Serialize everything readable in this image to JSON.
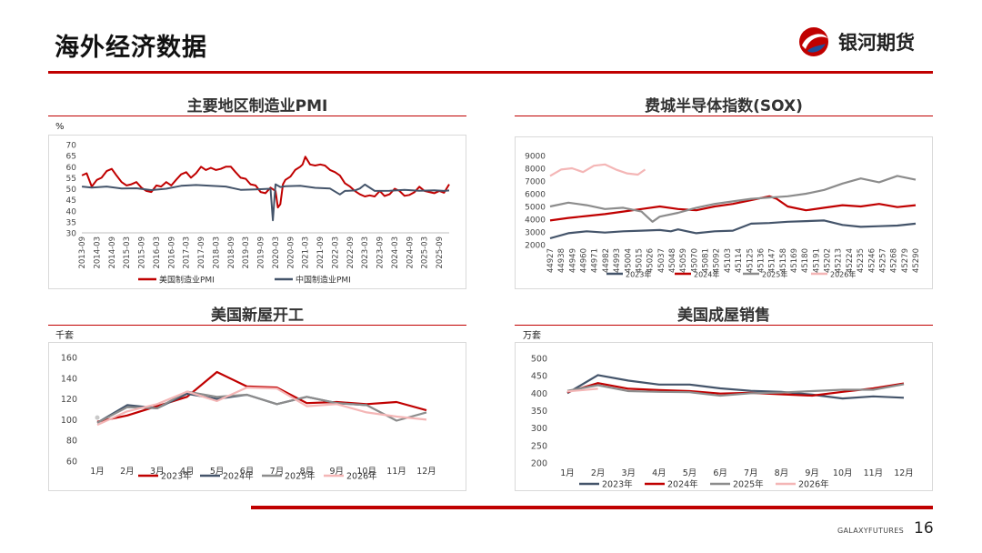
{
  "header": {
    "title": "海外经济数据",
    "logo_text": "银河期货"
  },
  "footer": {
    "brand": "GALAXYFUTURES",
    "page": "16"
  },
  "panels": [
    {
      "title": "主要地区制造业PMI",
      "unit": "%"
    },
    {
      "title": "费城半导体指数(SOX)",
      "unit": ""
    },
    {
      "title": "美国新屋开工",
      "unit": "千套"
    },
    {
      "title": "美国成屋销售",
      "unit": "万套"
    }
  ],
  "colors": {
    "red": "#c00000",
    "dark": "#44546a",
    "gray": "#8c8c8c",
    "pink": "#f4b6b6",
    "lightgray": "#c9c9c9"
  },
  "chart_data": [
    {
      "id": "pmi",
      "type": "line",
      "title": "主要地区制造业PMI",
      "ylabel": "%",
      "ylim": [
        30,
        70
      ],
      "yticks": [
        30,
        35,
        40,
        45,
        50,
        55,
        60,
        65,
        70
      ],
      "xlim": [
        2013.667,
        2026.0
      ],
      "xticks": [
        {
          "label": "2013-09",
          "x": 2013.667
        },
        {
          "label": "2014-03",
          "x": 2014.167
        },
        {
          "label": "2014-09",
          "x": 2014.667
        },
        {
          "label": "2015-03",
          "x": 2015.167
        },
        {
          "label": "2015-09",
          "x": 2015.667
        },
        {
          "label": "2016-03",
          "x": 2016.167
        },
        {
          "label": "2016-09",
          "x": 2016.667
        },
        {
          "label": "2017-03",
          "x": 2017.167
        },
        {
          "label": "2017-09",
          "x": 2017.667
        },
        {
          "label": "2018-03",
          "x": 2018.167
        },
        {
          "label": "2018-09",
          "x": 2018.667
        },
        {
          "label": "2019-03",
          "x": 2019.167
        },
        {
          "label": "2019-09",
          "x": 2019.667
        },
        {
          "label": "2020-03",
          "x": 2020.167
        },
        {
          "label": "2020-09",
          "x": 2020.667
        },
        {
          "label": "2021-03",
          "x": 2021.167
        },
        {
          "label": "2021-09",
          "x": 2021.667
        },
        {
          "label": "2022-03",
          "x": 2022.167
        },
        {
          "label": "2022-09",
          "x": 2022.667
        },
        {
          "label": "2023-03",
          "x": 2023.167
        },
        {
          "label": "2023-09",
          "x": 2023.667
        },
        {
          "label": "2024-03",
          "x": 2024.167
        },
        {
          "label": "2024-09",
          "x": 2024.667
        },
        {
          "label": "2025-03",
          "x": 2025.167
        },
        {
          "label": "2025-09",
          "x": 2025.667
        }
      ],
      "series": [
        {
          "name": "美国制造业PMI",
          "color": "#c00000",
          "width": 2,
          "x": [
            2013.67,
            2013.83,
            2014.0,
            2014.17,
            2014.33,
            2014.5,
            2014.67,
            2014.83,
            2015.0,
            2015.17,
            2015.33,
            2015.5,
            2015.67,
            2015.83,
            2016.0,
            2016.17,
            2016.33,
            2016.5,
            2016.67,
            2016.83,
            2017.0,
            2017.17,
            2017.33,
            2017.5,
            2017.67,
            2017.83,
            2018.0,
            2018.17,
            2018.33,
            2018.5,
            2018.67,
            2018.83,
            2019.0,
            2019.17,
            2019.33,
            2019.5,
            2019.67,
            2019.83,
            2020.0,
            2020.17,
            2020.25,
            2020.33,
            2020.42,
            2020.5,
            2020.67,
            2020.83,
            2021.0,
            2021.08,
            2021.17,
            2021.33,
            2021.5,
            2021.67,
            2021.83,
            2022.0,
            2022.17,
            2022.33,
            2022.5,
            2022.67,
            2022.83,
            2023.0,
            2023.17,
            2023.33,
            2023.5,
            2023.67,
            2023.83,
            2024.0,
            2024.17,
            2024.33,
            2024.5,
            2024.67,
            2024.83,
            2025.0,
            2025.17,
            2025.33,
            2025.5,
            2025.67,
            2025.83,
            2026.0
          ],
          "y": [
            56,
            57,
            51,
            54,
            55,
            58,
            59,
            56,
            53,
            51.5,
            52,
            53,
            50.5,
            49,
            48.5,
            51.5,
            51,
            53,
            51.5,
            54,
            56.5,
            57.5,
            55,
            57,
            60,
            58.5,
            59.5,
            58.5,
            59,
            60,
            60,
            57.5,
            55,
            54.5,
            52,
            51.5,
            48.5,
            48,
            50.5,
            49,
            41.5,
            43,
            52,
            54,
            55.5,
            58.5,
            60,
            61,
            64.5,
            61,
            60.5,
            61,
            60.5,
            58.5,
            57.5,
            56,
            52.5,
            51,
            49,
            47.5,
            46.5,
            47,
            46.5,
            49,
            46.7,
            47.5,
            50,
            49,
            46.8,
            47.2,
            48.4,
            50.9,
            49,
            48.5,
            48,
            49,
            48.2,
            52
          ]
        },
        {
          "name": "中国制造业PMI",
          "color": "#44546a",
          "width": 2,
          "x": [
            2013.67,
            2014.0,
            2014.5,
            2015.0,
            2015.5,
            2016.0,
            2016.5,
            2017.0,
            2017.5,
            2018.0,
            2018.5,
            2019.0,
            2019.5,
            2020.0,
            2020.08,
            2020.17,
            2020.33,
            2020.5,
            2021.0,
            2021.5,
            2022.0,
            2022.33,
            2022.5,
            2022.83,
            2023.0,
            2023.17,
            2023.5,
            2024.0,
            2024.5,
            2025.0,
            2025.5,
            2025.83,
            2026.0
          ],
          "y": [
            51,
            50.5,
            51,
            50.1,
            50.2,
            49.4,
            50,
            51.3,
            51.7,
            51.3,
            51,
            49.5,
            49.7,
            50,
            35.7,
            52,
            50.8,
            51.1,
            51.3,
            50.4,
            50.1,
            47.4,
            49,
            49.2,
            50.1,
            51.9,
            49,
            49.1,
            49.5,
            49.1,
            49.3,
            49,
            49.2
          ]
        }
      ],
      "legend": [
        "美国制造业PMI",
        "中国制造业PMI"
      ]
    },
    {
      "id": "sox",
      "type": "line",
      "title": "费城半导体指数(SOX)",
      "ylim": [
        2000,
        9000
      ],
      "yticks": [
        2000,
        3000,
        4000,
        5000,
        6000,
        7000,
        8000,
        9000
      ],
      "xlim": [
        0,
        1
      ],
      "xtick_labels": [
        "44927",
        "44938",
        "44949",
        "44960",
        "44971",
        "44982",
        "44993",
        "45004",
        "45015",
        "45026",
        "45037",
        "45048",
        "45059",
        "45070",
        "45081",
        "45092",
        "45103",
        "45114",
        "45125",
        "45136",
        "45147",
        "45158",
        "45169",
        "45180",
        "45191",
        "45202",
        "45213",
        "45224",
        "45235",
        "45246",
        "45257",
        "45268",
        "45279",
        "45290"
      ],
      "series": [
        {
          "name": "2023年",
          "color": "#44546a",
          "width": 2.2,
          "x": [
            0,
            0.05,
            0.1,
            0.15,
            0.2,
            0.25,
            0.3,
            0.33,
            0.35,
            0.4,
            0.45,
            0.5,
            0.55,
            0.6,
            0.65,
            0.7,
            0.75,
            0.8,
            0.85,
            0.9,
            0.95,
            1.0
          ],
          "y": [
            2500,
            2900,
            3050,
            2950,
            3050,
            3100,
            3150,
            3050,
            3200,
            2900,
            3050,
            3100,
            3650,
            3700,
            3800,
            3850,
            3900,
            3550,
            3400,
            3450,
            3500,
            3650
          ]
        },
        {
          "name": "2024年",
          "color": "#c00000",
          "width": 2.2,
          "x": [
            0,
            0.05,
            0.1,
            0.15,
            0.2,
            0.25,
            0.3,
            0.35,
            0.4,
            0.45,
            0.5,
            0.55,
            0.6,
            0.62,
            0.65,
            0.7,
            0.75,
            0.8,
            0.85,
            0.9,
            0.95,
            1.0
          ],
          "y": [
            3900,
            4100,
            4250,
            4400,
            4600,
            4800,
            5000,
            4800,
            4700,
            5000,
            5200,
            5500,
            5800,
            5600,
            5000,
            4700,
            4900,
            5100,
            5000,
            5200,
            4950,
            5100
          ]
        },
        {
          "name": "2025年",
          "color": "#8c8c8c",
          "width": 2.2,
          "x": [
            0,
            0.05,
            0.1,
            0.15,
            0.2,
            0.25,
            0.28,
            0.3,
            0.35,
            0.4,
            0.45,
            0.5,
            0.55,
            0.6,
            0.65,
            0.7,
            0.75,
            0.8,
            0.85,
            0.9,
            0.95,
            1.0
          ],
          "y": [
            5000,
            5300,
            5100,
            4800,
            4900,
            4600,
            3800,
            4200,
            4500,
            4900,
            5200,
            5400,
            5600,
            5700,
            5800,
            6000,
            6300,
            6800,
            7200,
            6900,
            7400,
            7100
          ]
        },
        {
          "name": "2026年",
          "color": "#f4b6b6",
          "width": 2.2,
          "x": [
            0,
            0.03,
            0.06,
            0.09,
            0.12,
            0.15,
            0.18,
            0.21,
            0.24,
            0.26
          ],
          "y": [
            7400,
            7900,
            8000,
            7700,
            8200,
            8300,
            7900,
            7600,
            7500,
            7900
          ]
        }
      ],
      "legend": [
        "2023年",
        "2024年",
        "2025年",
        "2026年"
      ]
    },
    {
      "id": "housing_starts",
      "type": "line",
      "title": "美国新屋开工",
      "ylabel": "千套",
      "ylim": [
        60,
        160
      ],
      "yticks": [
        60,
        80,
        100,
        120,
        140,
        160
      ],
      "categories": [
        "1月",
        "2月",
        "3月",
        "4月",
        "5月",
        "6月",
        "7月",
        "8月",
        "9月",
        "10月",
        "11月",
        "12月"
      ],
      "series": [
        {
          "name": "2023年",
          "color": "#c00000",
          "values": [
            98,
            104,
            113,
            122,
            146,
            132,
            131,
            116,
            117,
            115,
            117,
            109
          ]
        },
        {
          "name": "2024年",
          "color": "#44546a",
          "values": [
            97,
            114,
            111,
            125,
            120,
            124,
            115,
            122,
            116,
            114,
            null,
            null
          ]
        },
        {
          "name": "2025年",
          "color": "#8c8c8c",
          "values": [
            97,
            112,
            111,
            127,
            122,
            124,
            115,
            122,
            116,
            114,
            99,
            107
          ]
        },
        {
          "name": "2026年",
          "color": "#f4b6b6",
          "values": [
            95,
            108,
            115,
            127,
            118,
            131,
            130,
            113,
            115,
            107,
            103,
            100
          ]
        }
      ],
      "legend": [
        "2023年",
        "2024年",
        "2025年",
        "2026年"
      ]
    },
    {
      "id": "existing_home_sales",
      "type": "line",
      "title": "美国成屋销售",
      "ylabel": "万套",
      "ylim": [
        200,
        500
      ],
      "yticks": [
        200,
        250,
        300,
        350,
        400,
        450,
        500
      ],
      "categories": [
        "1月",
        "2月",
        "3月",
        "4月",
        "5月",
        "6月",
        "7月",
        "8月",
        "9月",
        "10月",
        "11月",
        "12月"
      ],
      "series": [
        {
          "name": "2023年",
          "color": "#44546a",
          "values": [
            400,
            452,
            436,
            425,
            425,
            414,
            407,
            404,
            396,
            385,
            391,
            387
          ]
        },
        {
          "name": "2024年",
          "color": "#c00000",
          "values": [
            403,
            429,
            413,
            409,
            406,
            399,
            401,
            397,
            393,
            404,
            414,
            428
          ]
        },
        {
          "name": "2025年",
          "color": "#8c8c8c",
          "values": [
            407,
            423,
            406,
            404,
            403,
            393,
            400,
            402,
            406,
            410,
            410,
            426
          ]
        },
        {
          "name": "2026年",
          "color": "#f4b6b6",
          "values": [
            405,
            413,
            null,
            null,
            null,
            null,
            null,
            null,
            null,
            null,
            null,
            null
          ]
        }
      ],
      "legend": [
        "2023年",
        "2024年",
        "2025年",
        "2026年"
      ]
    }
  ]
}
